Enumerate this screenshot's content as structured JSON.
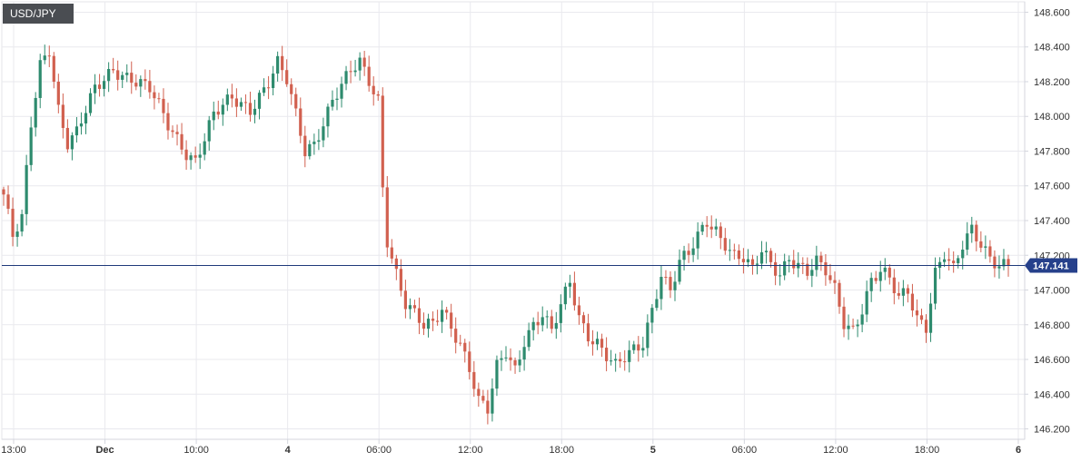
{
  "chart_data": {
    "type": "candlestick",
    "title": "USD/JPY",
    "current_price": "147.141",
    "ylim": [
      146.14,
      148.66
    ],
    "y_ticks": [
      "148.600",
      "148.400",
      "148.200",
      "148.000",
      "147.800",
      "147.600",
      "147.400",
      "147.200",
      "147.000",
      "146.800",
      "146.600",
      "146.400",
      "146.200"
    ],
    "time_ticks": [
      {
        "label": "13:00",
        "bold": false
      },
      {
        "label": "Dec",
        "bold": true
      },
      {
        "label": "10:00",
        "bold": false
      },
      {
        "label": "4",
        "bold": true
      },
      {
        "label": "06:00",
        "bold": false
      },
      {
        "label": "12:00",
        "bold": false
      },
      {
        "label": "18:00",
        "bold": false
      },
      {
        "label": "5",
        "bold": true
      },
      {
        "label": "06:00",
        "bold": false
      },
      {
        "label": "12:00",
        "bold": false
      },
      {
        "label": "18:00",
        "bold": false
      },
      {
        "label": "6",
        "bold": true
      }
    ],
    "series_anchors": [
      [
        0,
        147.55
      ],
      [
        2,
        147.3
      ],
      [
        4,
        147.4
      ],
      [
        6,
        147.95
      ],
      [
        8,
        148.3
      ],
      [
        10,
        148.4
      ],
      [
        12,
        148.05
      ],
      [
        14,
        147.85
      ],
      [
        16,
        147.9
      ],
      [
        20,
        148.15
      ],
      [
        24,
        148.28
      ],
      [
        28,
        148.22
      ],
      [
        32,
        148.15
      ],
      [
        36,
        147.95
      ],
      [
        40,
        147.8
      ],
      [
        42,
        147.75
      ],
      [
        46,
        148.0
      ],
      [
        50,
        148.1
      ],
      [
        54,
        148.05
      ],
      [
        58,
        148.2
      ],
      [
        60,
        148.3
      ],
      [
        62,
        148.2
      ],
      [
        64,
        148.0
      ],
      [
        66,
        147.8
      ],
      [
        68,
        147.85
      ],
      [
        72,
        148.1
      ],
      [
        76,
        148.25
      ],
      [
        78,
        148.3
      ],
      [
        80,
        148.2
      ],
      [
        82,
        148.1
      ],
      [
        83,
        147.6
      ],
      [
        84,
        147.3
      ],
      [
        86,
        147.1
      ],
      [
        88,
        146.92
      ],
      [
        90,
        146.85
      ],
      [
        92,
        146.78
      ],
      [
        94,
        146.8
      ],
      [
        96,
        146.9
      ],
      [
        98,
        146.8
      ],
      [
        100,
        146.7
      ],
      [
        102,
        146.55
      ],
      [
        104,
        146.35
      ],
      [
        106,
        146.3
      ],
      [
        108,
        146.55
      ],
      [
        110,
        146.65
      ],
      [
        112,
        146.55
      ],
      [
        114,
        146.72
      ],
      [
        116,
        146.8
      ],
      [
        118,
        146.85
      ],
      [
        120,
        146.75
      ],
      [
        122,
        146.9
      ],
      [
        124,
        147.05
      ],
      [
        126,
        146.85
      ],
      [
        128,
        146.75
      ],
      [
        130,
        146.7
      ],
      [
        132,
        146.62
      ],
      [
        134,
        146.55
      ],
      [
        136,
        146.6
      ],
      [
        138,
        146.65
      ],
      [
        140,
        146.7
      ],
      [
        142,
        146.9
      ],
      [
        144,
        147.1
      ],
      [
        146,
        147.0
      ],
      [
        148,
        147.15
      ],
      [
        150,
        147.2
      ],
      [
        152,
        147.3
      ],
      [
        154,
        147.4
      ],
      [
        156,
        147.35
      ],
      [
        158,
        147.28
      ],
      [
        160,
        147.2
      ],
      [
        162,
        147.18
      ],
      [
        164,
        147.1
      ],
      [
        166,
        147.22
      ],
      [
        168,
        147.15
      ],
      [
        170,
        147.1
      ],
      [
        172,
        147.2
      ],
      [
        174,
        147.15
      ],
      [
        176,
        147.1
      ],
      [
        178,
        147.15
      ],
      [
        180,
        147.1
      ],
      [
        182,
        147.0
      ],
      [
        184,
        146.82
      ],
      [
        186,
        146.78
      ],
      [
        188,
        146.9
      ],
      [
        190,
        147.05
      ],
      [
        192,
        147.1
      ],
      [
        194,
        147.05
      ],
      [
        196,
        146.95
      ],
      [
        198,
        147.0
      ],
      [
        200,
        146.85
      ],
      [
        202,
        146.8
      ],
      [
        204,
        147.1
      ],
      [
        206,
        147.2
      ],
      [
        208,
        147.1
      ],
      [
        210,
        147.25
      ],
      [
        212,
        147.35
      ],
      [
        214,
        147.28
      ],
      [
        216,
        147.2
      ],
      [
        218,
        147.15
      ],
      [
        220,
        147.14
      ]
    ],
    "bullish_color": "#2e8b6e",
    "bearish_color": "#d1604f",
    "price_line_color": "#1f3a7a",
    "price_label_color": "#26408b"
  }
}
